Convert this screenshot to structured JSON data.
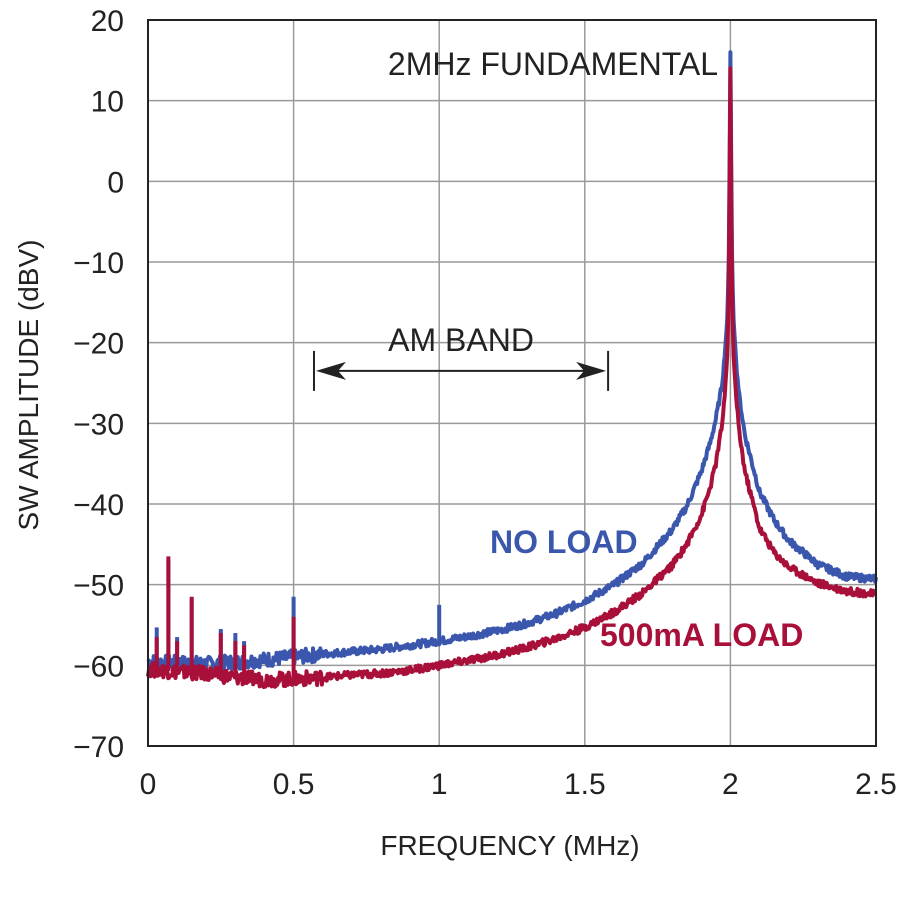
{
  "chart_data": {
    "type": "line",
    "title": "",
    "xlabel": "FREQUENCY (MHz)",
    "ylabel": "SW AMPLITUDE (dBV)",
    "xlim": [
      0,
      2.5
    ],
    "ylim": [
      -70,
      20
    ],
    "x_ticks": [
      "0",
      "0.5",
      "1",
      "1.5",
      "2",
      "2.5"
    ],
    "y_ticks": [
      "20",
      "10",
      "0",
      "−10",
      "−20",
      "−30",
      "−40",
      "−50",
      "−60",
      "−70"
    ],
    "grid": true,
    "annotations": {
      "fundamental": "2MHz FUNDAMENTAL",
      "am_band": "AM BAND",
      "am_band_range": [
        0.57,
        1.58
      ]
    },
    "series": [
      {
        "name": "NO LOAD",
        "color": "#3a57ad",
        "x": [
          0,
          0.1,
          0.2,
          0.3,
          0.4,
          0.5,
          0.6,
          0.7,
          0.8,
          0.9,
          1.0,
          1.1,
          1.2,
          1.3,
          1.4,
          1.5,
          1.6,
          1.7,
          1.8,
          1.85,
          1.9,
          1.93,
          1.95,
          1.97,
          1.98,
          1.99,
          1.995,
          2.0,
          2.005,
          2.01,
          2.02,
          2.03,
          2.05,
          2.1,
          2.15,
          2.2,
          2.3,
          2.4,
          2.5
        ],
        "y": [
          -59.5,
          -59.7,
          -59.8,
          -59.6,
          -59.3,
          -59.0,
          -58.6,
          -58.3,
          -58.0,
          -57.5,
          -57.0,
          -56.4,
          -55.7,
          -54.8,
          -53.6,
          -52.0,
          -50.0,
          -47.3,
          -43.2,
          -40.3,
          -36.0,
          -32.5,
          -29.5,
          -25.5,
          -22.0,
          -16.5,
          -8.0,
          16.0,
          -8.0,
          -16.5,
          -22.5,
          -26.5,
          -31.5,
          -38.5,
          -42.0,
          -44.5,
          -47.5,
          -49.0,
          -49.3
        ],
        "spikes": [
          [
            0.03,
            -55.3
          ],
          [
            0.07,
            -47.0
          ],
          [
            0.1,
            -56.5
          ],
          [
            0.15,
            -51.8
          ],
          [
            0.25,
            -55.5
          ],
          [
            0.3,
            -56.0
          ],
          [
            0.33,
            -57.0
          ],
          [
            0.5,
            -51.5
          ],
          [
            1.0,
            -52.5
          ]
        ]
      },
      {
        "name": "500mA LOAD",
        "color": "#a8103a",
        "x": [
          0,
          0.1,
          0.2,
          0.3,
          0.4,
          0.5,
          0.6,
          0.7,
          0.8,
          0.9,
          1.0,
          1.1,
          1.2,
          1.3,
          1.4,
          1.5,
          1.6,
          1.7,
          1.8,
          1.85,
          1.9,
          1.93,
          1.95,
          1.97,
          1.98,
          1.99,
          1.995,
          2.0,
          2.005,
          2.01,
          2.02,
          2.03,
          2.05,
          2.1,
          2.15,
          2.2,
          2.3,
          2.4,
          2.5
        ],
        "y": [
          -60.5,
          -60.8,
          -61.0,
          -61.5,
          -61.8,
          -61.7,
          -61.5,
          -61.2,
          -61.0,
          -60.6,
          -60.0,
          -59.4,
          -58.7,
          -57.8,
          -56.7,
          -55.3,
          -53.4,
          -51.0,
          -47.6,
          -45.0,
          -41.4,
          -38.0,
          -35.0,
          -30.5,
          -27.0,
          -21.0,
          -12.0,
          14.0,
          -12.0,
          -21.0,
          -27.0,
          -31.0,
          -36.0,
          -43.0,
          -46.0,
          -47.8,
          -49.8,
          -50.8,
          -51.2
        ],
        "spikes": [
          [
            0.03,
            -56.5
          ],
          [
            0.07,
            -46.5
          ],
          [
            0.1,
            -57.0
          ],
          [
            0.15,
            -51.5
          ],
          [
            0.25,
            -56.0
          ],
          [
            0.3,
            -57.0
          ],
          [
            0.33,
            -57.5
          ],
          [
            0.5,
            -54.0
          ],
          [
            1.0,
            -59.5
          ]
        ]
      }
    ]
  }
}
